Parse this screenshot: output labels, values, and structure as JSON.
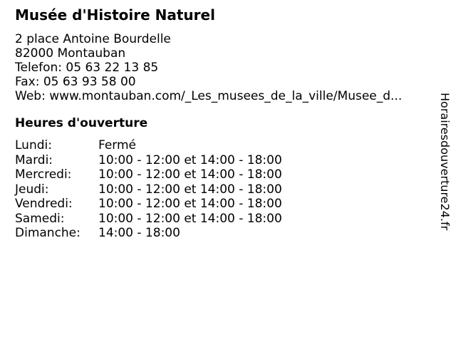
{
  "colors": {
    "text": "#000000",
    "background": "#ffffff"
  },
  "header": {
    "title": "Musée d'Histoire Naturel",
    "address_line1": "2 place Antoine Bourdelle",
    "address_line2": "82000 Montauban",
    "phone_line": "Telefon: 05 63 22 13 85",
    "fax_line": "Fax: 05 63 93 58 00",
    "web_line": "Web: www.montauban.com/_Les_musees_de_la_ville/Musee_d..."
  },
  "hours": {
    "heading": "Heures d'ouverture",
    "rows": [
      {
        "day": "Lundi:",
        "time": "Fermé"
      },
      {
        "day": "Mardi:",
        "time": "10:00 - 12:00 et 14:00 - 18:00"
      },
      {
        "day": "Mercredi:",
        "time": "10:00 - 12:00 et 14:00 - 18:00"
      },
      {
        "day": "Jeudi:",
        "time": "10:00 - 12:00 et 14:00 - 18:00"
      },
      {
        "day": "Vendredi:",
        "time": "10:00 - 12:00 et 14:00 - 18:00"
      },
      {
        "day": "Samedi:",
        "time": "10:00 - 12:00 et 14:00 - 18:00"
      },
      {
        "day": "Dimanche:",
        "time": "14:00 - 18:00"
      }
    ]
  },
  "watermark": "Horairesdouverture24.fr"
}
